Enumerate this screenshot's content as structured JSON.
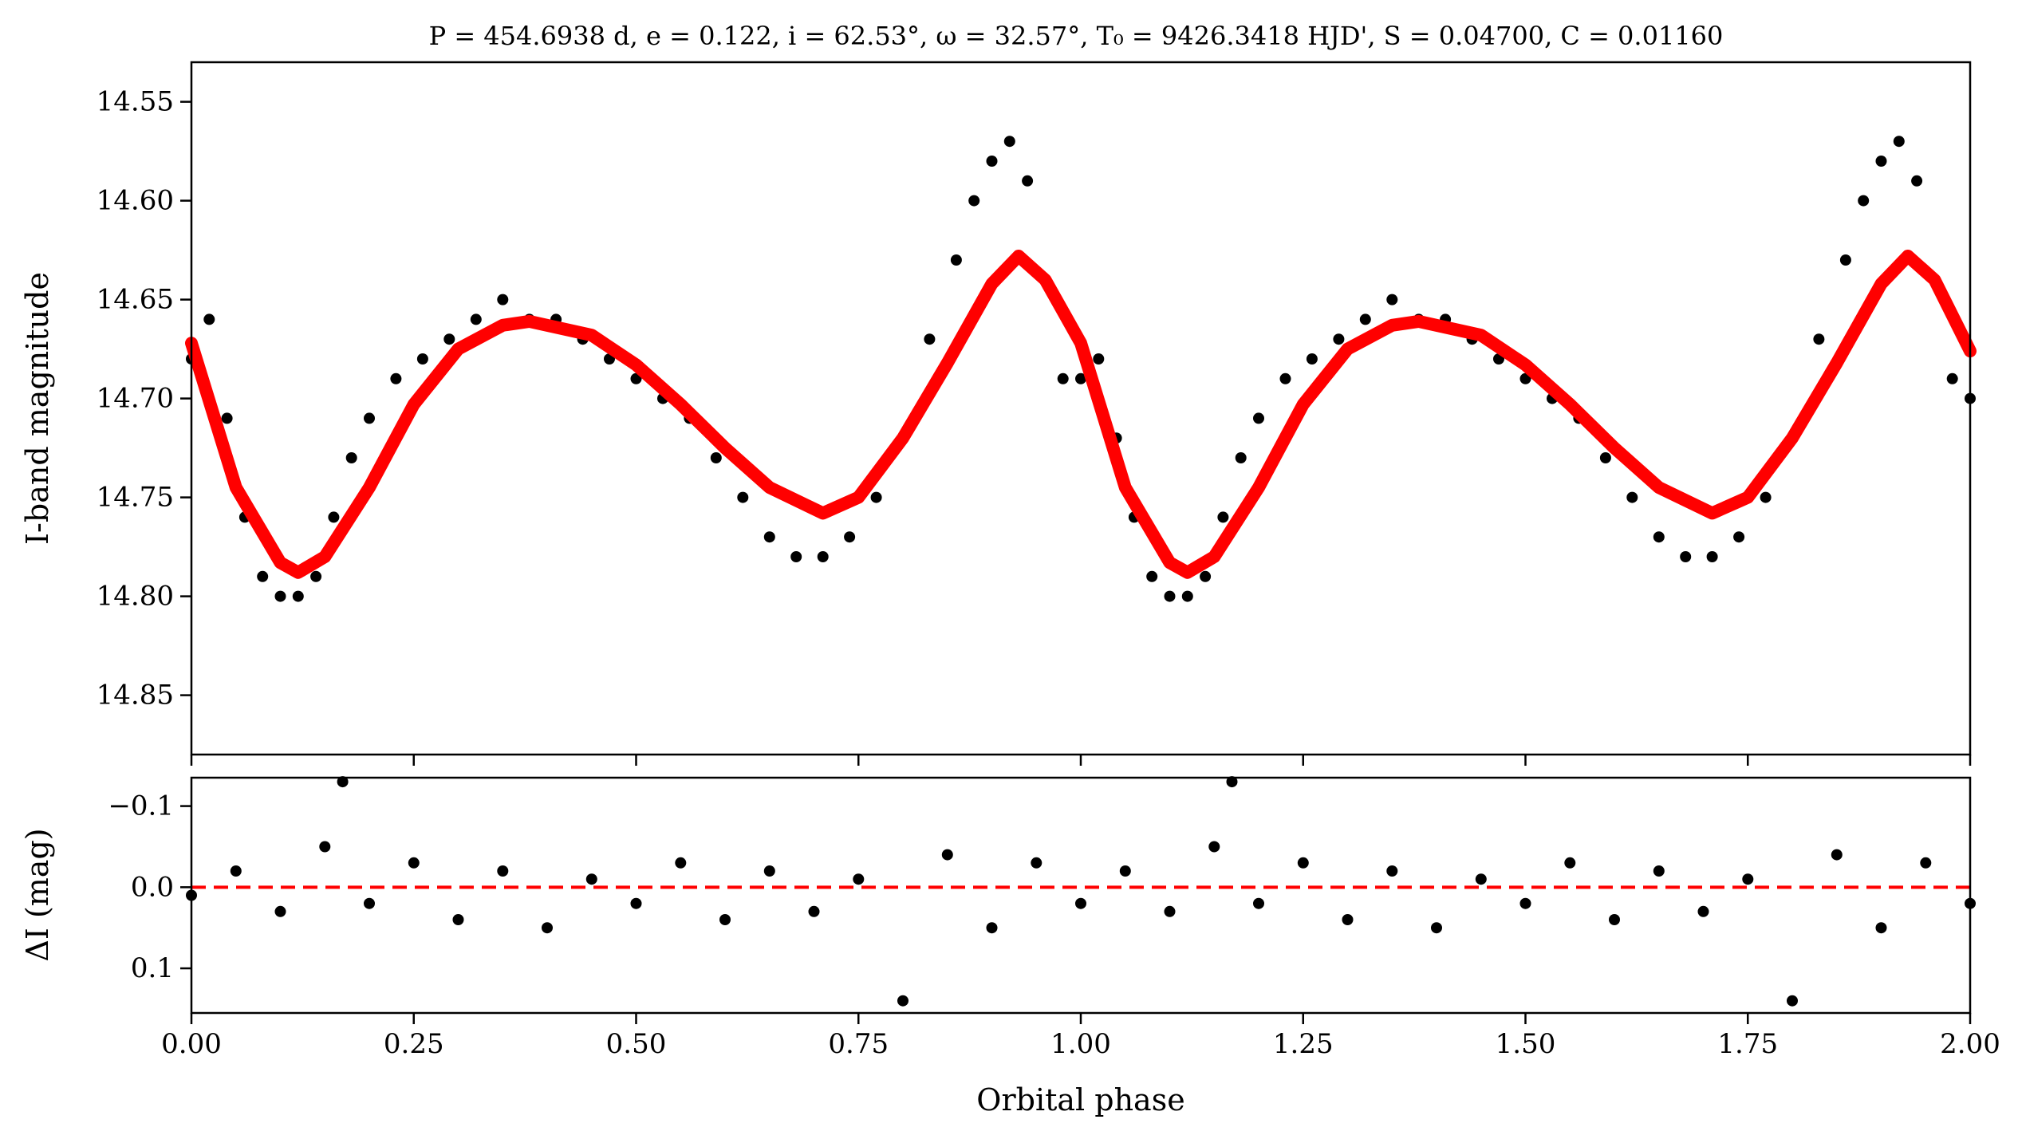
{
  "chart_data": [
    {
      "type": "scatter",
      "panel": "top",
      "title": "P = 454.6938 d, e = 0.122, i = 62.53°, ω = 32.57°, T₀ = 9426.3418 HJD', S = 0.04700, C = 0.01160",
      "xlabel": "",
      "ylabel": "I-band magnitude",
      "xlim": [
        0,
        2
      ],
      "ylim": [
        14.88,
        14.53
      ],
      "y_inverted": true,
      "grid": false,
      "xticks": [
        0,
        0.25,
        0.5,
        0.75,
        1.0,
        1.25,
        1.5,
        1.75,
        2.0
      ],
      "yticks": [
        14.55,
        14.6,
        14.65,
        14.7,
        14.75,
        14.8,
        14.85
      ],
      "ytick_labels": [
        "14.55",
        "14.60",
        "14.65",
        "14.70",
        "14.75",
        "14.80",
        "14.85"
      ],
      "series": [
        {
          "kind": "scatter",
          "color": "#000000",
          "x": [
            0.0,
            0.02,
            0.04,
            0.06,
            0.08,
            0.1,
            0.12,
            0.14,
            0.16,
            0.18,
            0.2,
            0.23,
            0.26,
            0.29,
            0.32,
            0.35,
            0.38,
            0.41,
            0.44,
            0.47,
            0.5,
            0.53,
            0.56,
            0.59,
            0.62,
            0.65,
            0.68,
            0.71,
            0.74,
            0.77,
            0.8,
            0.83,
            0.86,
            0.88,
            0.9,
            0.92,
            0.94,
            0.96,
            0.98,
            1.0,
            1.02,
            1.04,
            1.06,
            1.08,
            1.1,
            1.12,
            1.14,
            1.16,
            1.18,
            1.2,
            1.23,
            1.26,
            1.29,
            1.32,
            1.35,
            1.38,
            1.41,
            1.44,
            1.47,
            1.5,
            1.53,
            1.56,
            1.59,
            1.62,
            1.65,
            1.68,
            1.71,
            1.74,
            1.77,
            1.8,
            1.83,
            1.86,
            1.88,
            1.9,
            1.92,
            1.94,
            1.96,
            1.98,
            2.0
          ],
          "y": [
            14.68,
            14.66,
            14.71,
            14.76,
            14.79,
            14.8,
            14.8,
            14.79,
            14.76,
            14.73,
            14.71,
            14.69,
            14.68,
            14.67,
            14.66,
            14.65,
            14.66,
            14.66,
            14.67,
            14.68,
            14.69,
            14.7,
            14.71,
            14.73,
            14.75,
            14.77,
            14.78,
            14.78,
            14.77,
            14.75,
            14.72,
            14.67,
            14.63,
            14.6,
            14.58,
            14.57,
            14.59,
            14.64,
            14.69,
            14.69,
            14.68,
            14.72,
            14.76,
            14.79,
            14.8,
            14.8,
            14.79,
            14.76,
            14.73,
            14.71,
            14.69,
            14.68,
            14.67,
            14.66,
            14.65,
            14.66,
            14.66,
            14.67,
            14.68,
            14.69,
            14.7,
            14.71,
            14.73,
            14.75,
            14.77,
            14.78,
            14.78,
            14.77,
            14.75,
            14.72,
            14.67,
            14.63,
            14.6,
            14.58,
            14.57,
            14.59,
            14.64,
            14.69,
            14.7
          ]
        },
        {
          "kind": "line",
          "name": "",
          "color": "#ff0000",
          "x": [
            0.0,
            0.05,
            0.1,
            0.12,
            0.15,
            0.2,
            0.25,
            0.3,
            0.35,
            0.38,
            0.45,
            0.5,
            0.55,
            0.6,
            0.65,
            0.71,
            0.75,
            0.8,
            0.85,
            0.9,
            0.93,
            0.96,
            1.0,
            1.05,
            1.1,
            1.12,
            1.15,
            1.2,
            1.25,
            1.3,
            1.35,
            1.38,
            1.45,
            1.5,
            1.55,
            1.6,
            1.65,
            1.71,
            1.75,
            1.8,
            1.85,
            1.9,
            1.93,
            1.96,
            2.0
          ],
          "y": [
            14.672,
            14.745,
            14.783,
            14.788,
            14.78,
            14.745,
            14.703,
            14.675,
            14.663,
            14.661,
            14.668,
            14.683,
            14.703,
            14.725,
            14.745,
            14.758,
            14.75,
            14.72,
            14.682,
            14.642,
            14.628,
            14.64,
            14.672,
            14.745,
            14.783,
            14.788,
            14.78,
            14.745,
            14.703,
            14.675,
            14.663,
            14.661,
            14.668,
            14.683,
            14.703,
            14.725,
            14.745,
            14.758,
            14.75,
            14.72,
            14.682,
            14.642,
            14.628,
            14.64,
            14.676
          ]
        }
      ]
    },
    {
      "type": "scatter",
      "panel": "bottom",
      "xlabel": "Orbital phase",
      "ylabel": "ΔI (mag)",
      "xlim": [
        0,
        2
      ],
      "ylim": [
        0.155,
        -0.135
      ],
      "y_inverted": true,
      "grid": false,
      "xticks": [
        0,
        0.25,
        0.5,
        0.75,
        1.0,
        1.25,
        1.5,
        1.75,
        2.0
      ],
      "xtick_labels": [
        "0.00",
        "0.25",
        "0.50",
        "0.75",
        "1.00",
        "1.25",
        "1.50",
        "1.75",
        "2.00"
      ],
      "yticks": [
        -0.1,
        0.0,
        0.1
      ],
      "ytick_labels": [
        "−0.1",
        "0.0",
        "0.1"
      ],
      "series": [
        {
          "kind": "scatter",
          "color": "#000000",
          "x": [
            0.0,
            0.05,
            0.1,
            0.15,
            0.17,
            0.2,
            0.25,
            0.3,
            0.35,
            0.4,
            0.45,
            0.5,
            0.55,
            0.6,
            0.65,
            0.7,
            0.75,
            0.8,
            0.85,
            0.9,
            0.95,
            1.0,
            1.05,
            1.1,
            1.15,
            1.17,
            1.2,
            1.25,
            1.3,
            1.35,
            1.4,
            1.45,
            1.5,
            1.55,
            1.6,
            1.65,
            1.7,
            1.75,
            1.8,
            1.85,
            1.9,
            1.95,
            2.0
          ],
          "y": [
            0.01,
            -0.02,
            0.03,
            -0.05,
            -0.13,
            0.02,
            -0.03,
            0.04,
            -0.02,
            0.05,
            -0.01,
            0.02,
            -0.03,
            0.04,
            -0.02,
            0.03,
            -0.01,
            0.14,
            -0.04,
            0.05,
            -0.03,
            0.02,
            -0.02,
            0.03,
            -0.05,
            -0.13,
            0.02,
            -0.03,
            0.04,
            -0.02,
            0.05,
            -0.01,
            0.02,
            -0.03,
            0.04,
            -0.02,
            0.03,
            -0.01,
            0.14,
            -0.04,
            0.05,
            -0.03,
            0.02
          ]
        },
        {
          "kind": "hline",
          "style": "dashed",
          "color": "#ff0000",
          "y": 0.0
        }
      ]
    }
  ]
}
